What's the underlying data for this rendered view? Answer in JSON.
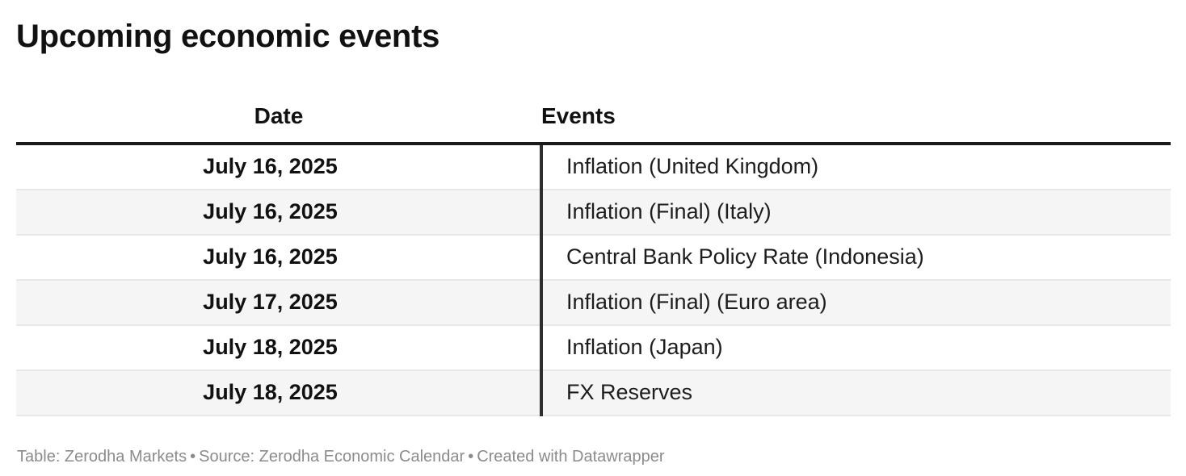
{
  "title": "Upcoming economic events",
  "table": {
    "columns": [
      "Date",
      "Events"
    ],
    "rows": [
      {
        "date": "July 16, 2025",
        "event": "Inflation (United Kingdom)"
      },
      {
        "date": "July 16, 2025",
        "event": "Inflation (Final) (Italy)"
      },
      {
        "date": "July 16, 2025",
        "event": "Central Bank Policy Rate (Indonesia)"
      },
      {
        "date": "July 17, 2025",
        "event": "Inflation (Final) (Euro area)"
      },
      {
        "date": "July 18, 2025",
        "event": "Inflation (Japan)"
      },
      {
        "date": "July 18, 2025",
        "event": "FX Reserves"
      }
    ]
  },
  "footer": {
    "table_credit": "Table: Zerodha Markets",
    "separator": "•",
    "source_credit": "Source: Zerodha Economic Calendar",
    "tool_credit": "Created with Datawrapper"
  },
  "colors": {
    "title_text": "#111111",
    "body_text": "#1d1d1d",
    "footer_text": "#8b8b8b",
    "row_alt_background": "#f5f5f5",
    "row_separator": "#e7e7e7",
    "header_rule": "#1a1a1a",
    "column_divider": "#2e2e2e"
  },
  "chart_data": {
    "type": "table",
    "title": "Upcoming economic events",
    "columns": [
      "Date",
      "Events"
    ],
    "rows": [
      [
        "July 16, 2025",
        "Inflation (United Kingdom)"
      ],
      [
        "July 16, 2025",
        "Inflation (Final) (Italy)"
      ],
      [
        "July 16, 2025",
        "Central Bank Policy Rate (Indonesia)"
      ],
      [
        "July 17, 2025",
        "Inflation (Final) (Euro area)"
      ],
      [
        "July 18, 2025",
        "Inflation (Japan)"
      ],
      [
        "July 18, 2025",
        "FX Reserves"
      ]
    ],
    "layout_hints": {
      "date_column_alignment": "center",
      "events_column_alignment": "left",
      "striped_rows": true,
      "header_rule": true,
      "column_divider": true
    },
    "footnote": "Table: Zerodha Markets • Source: Zerodha Economic Calendar • Created with Datawrapper"
  }
}
